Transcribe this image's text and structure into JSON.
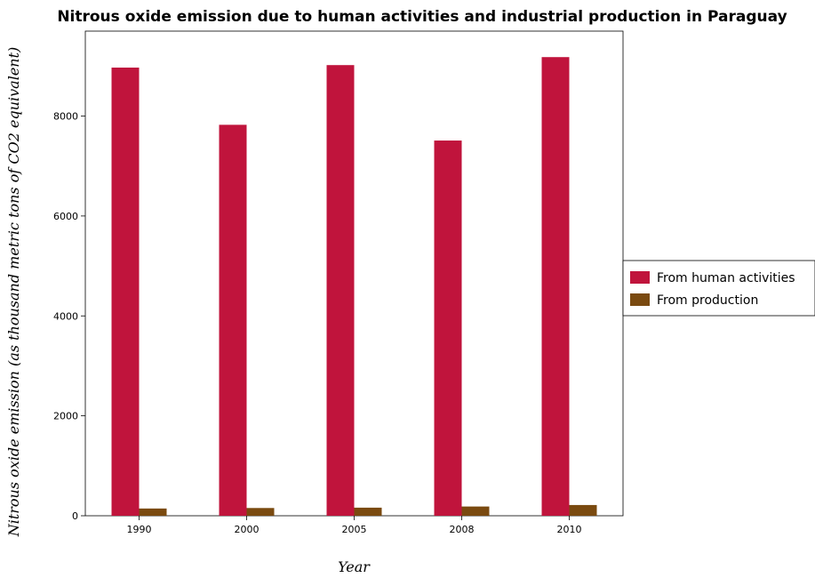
{
  "chart_data": {
    "type": "bar",
    "title": "Nitrous oxide emission due to human activities and industrial production in Paraguay",
    "xlabel": "Year",
    "ylabel": "Nitrous oxide emission (as thousand metric tons of CO2 equivalent)",
    "categories": [
      "1990",
      "2000",
      "2005",
      "2008",
      "2010"
    ],
    "ylim": [
      0,
      9700
    ],
    "yticks": [
      0,
      2000,
      4000,
      6000,
      8000
    ],
    "ytick_labels": [
      "0",
      "2000",
      "4000",
      "6000",
      "8000"
    ],
    "grid": false,
    "legend_position": "right",
    "series": [
      {
        "name": "From human activities",
        "color": "#c0143c",
        "values": [
          8970,
          7825,
          9020,
          7510,
          9180
        ]
      },
      {
        "name": "From production",
        "color": "#7a4a10",
        "values": [
          145,
          155,
          162,
          185,
          215
        ]
      }
    ]
  }
}
